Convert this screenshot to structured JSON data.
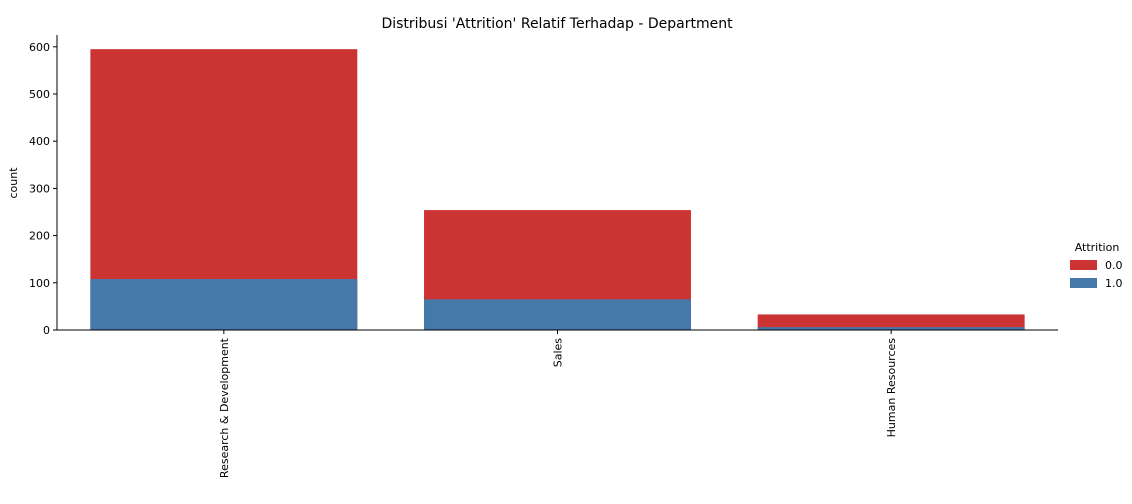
{
  "chart_data": {
    "type": "bar",
    "stacked": true,
    "title": "Distribusi 'Attrition' Relatif Terhadap - Department",
    "xlabel": "",
    "ylabel": "count",
    "categories": [
      "Research & Development",
      "Sales",
      "Human Resources"
    ],
    "series": [
      {
        "name": "0.0",
        "total_values": [
          595,
          254,
          33
        ],
        "color": "#cc3333"
      },
      {
        "name": "1.0",
        "values": [
          108,
          65,
          6
        ],
        "color": "#4479aa"
      }
    ],
    "ylim": [
      0,
      625
    ],
    "yticks": [
      0,
      100,
      200,
      300,
      400,
      500,
      600
    ],
    "x_tick_rotation": -90,
    "legend": {
      "title": "Attrition",
      "placement": "right"
    },
    "grid": false
  }
}
